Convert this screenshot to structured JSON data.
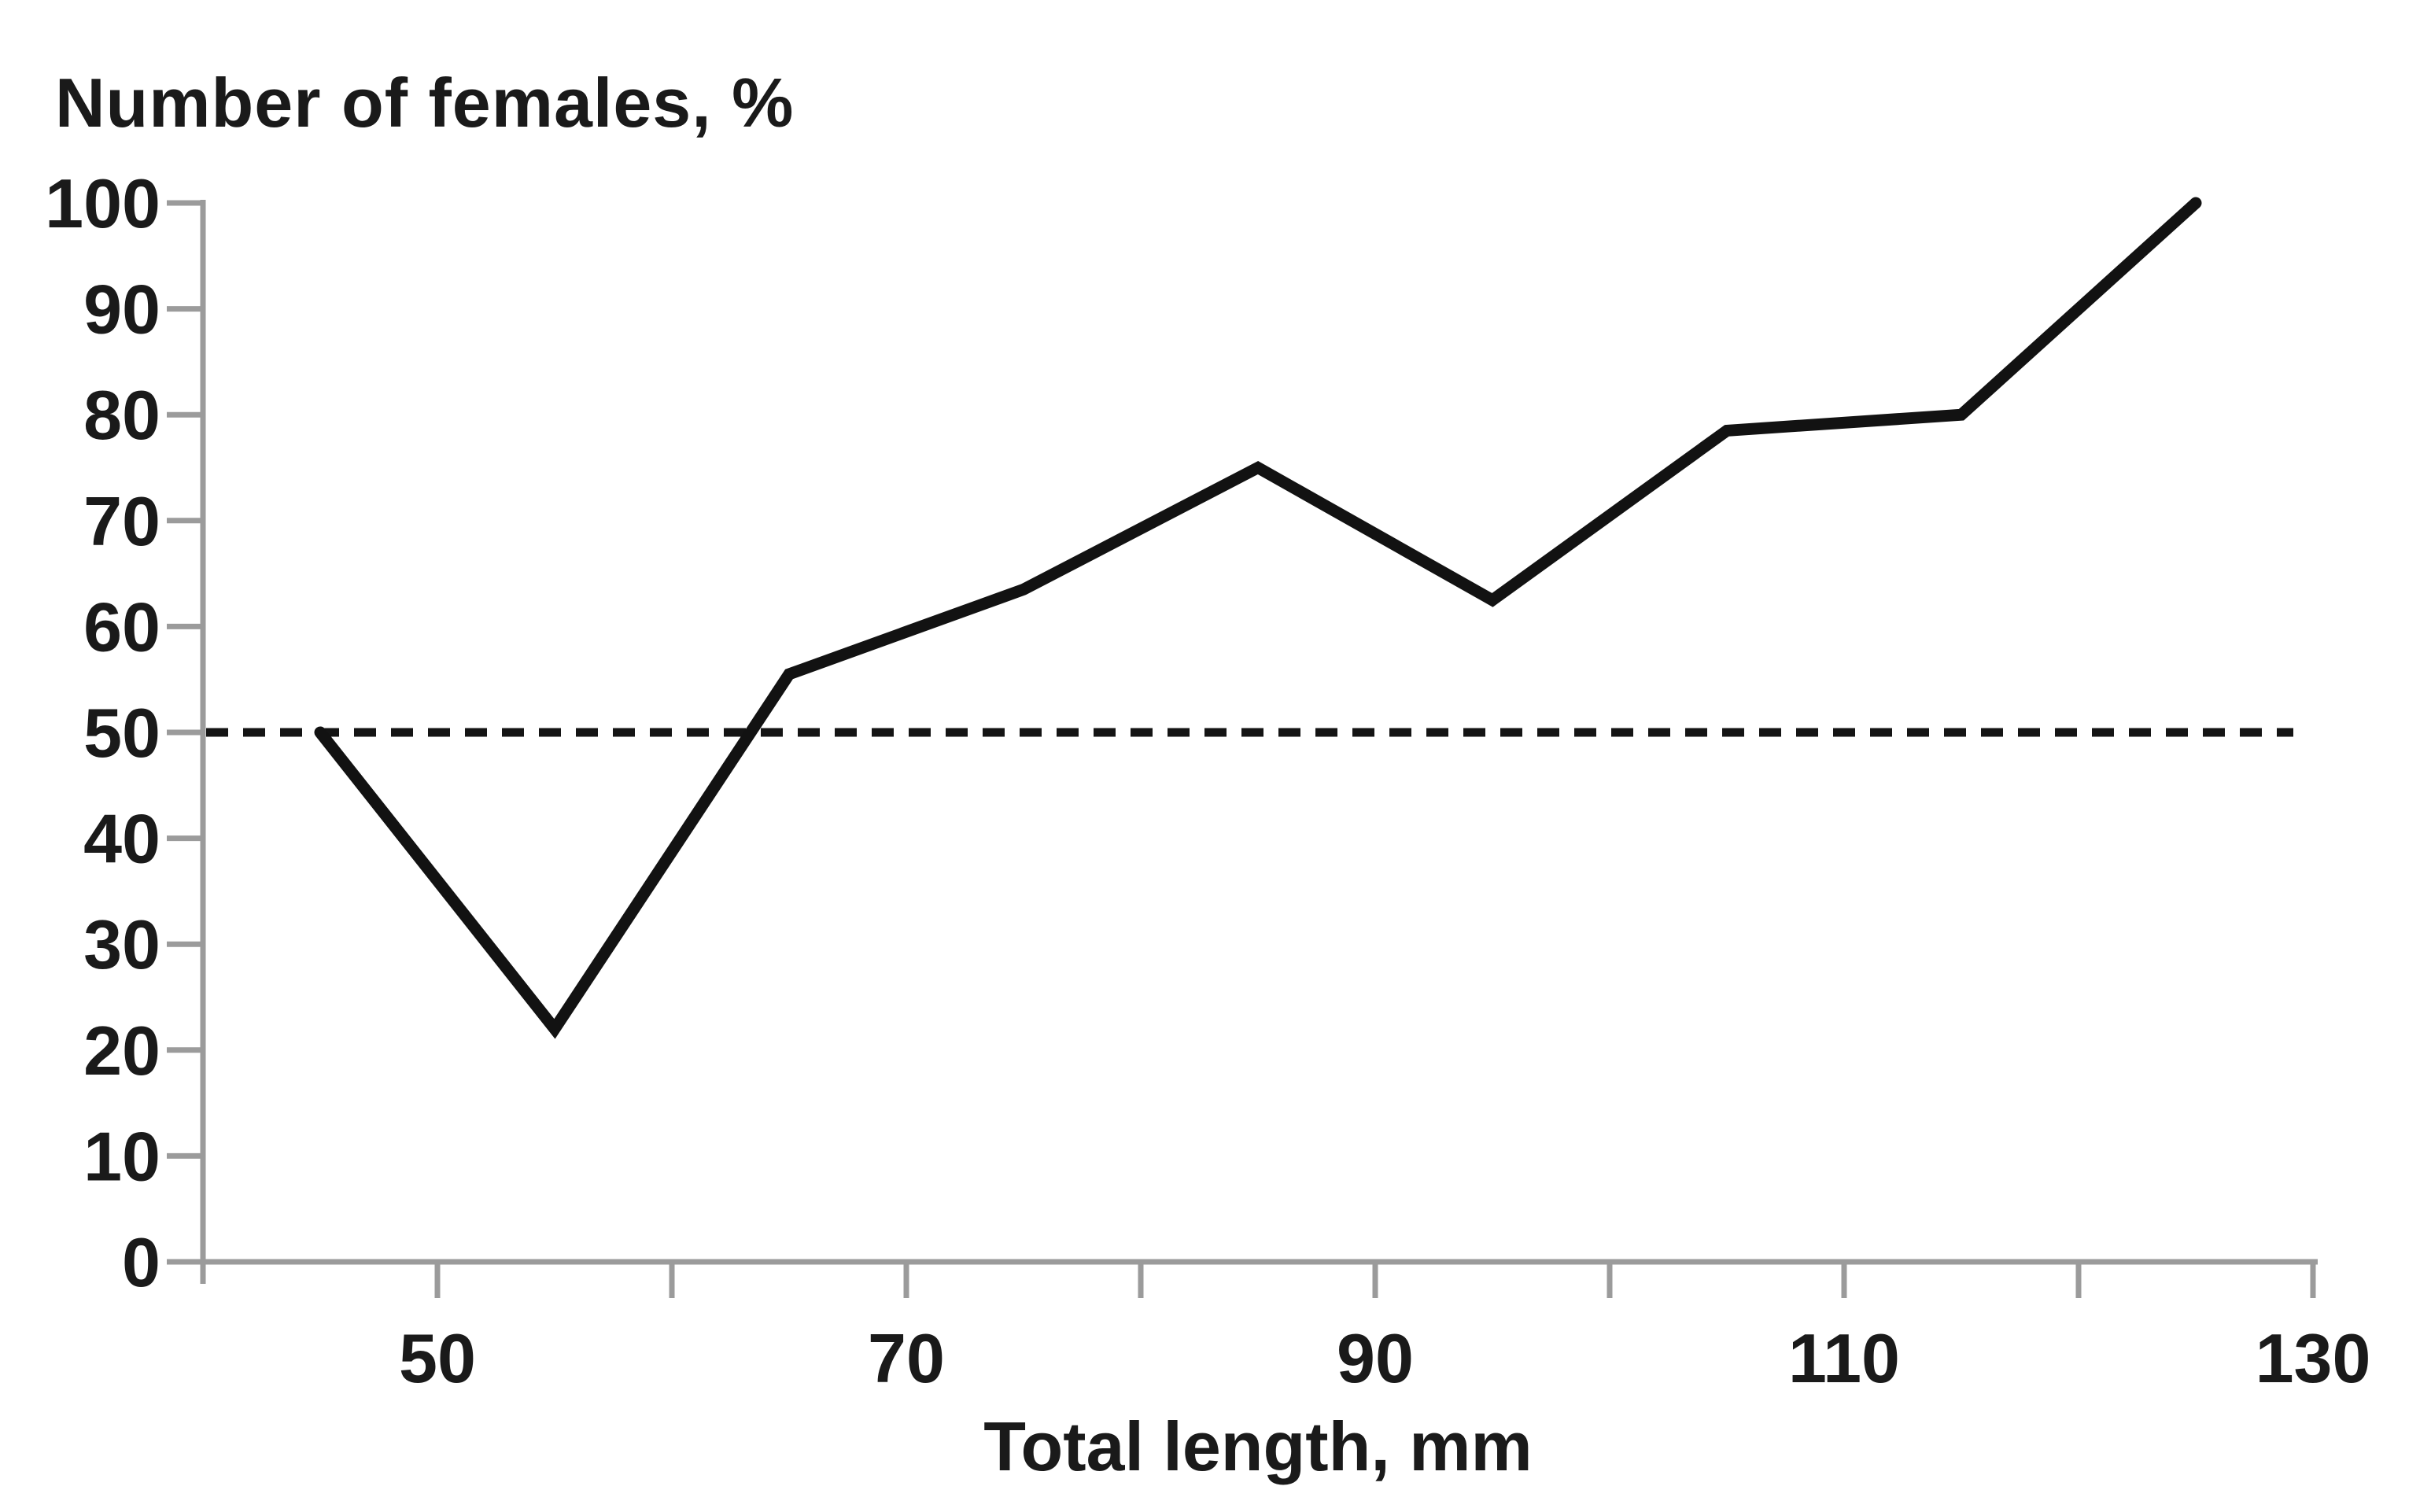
{
  "chart_data": {
    "type": "line",
    "title": "",
    "ylabel": "Number of females, %",
    "xlabel": "Total length, mm",
    "x": [
      45,
      55,
      65,
      75,
      85,
      95,
      105,
      115,
      125
    ],
    "series": [
      {
        "values": [
          50,
          22,
          55.5,
          63.5,
          75,
          62.5,
          78.5,
          80,
          100
        ]
      }
    ],
    "reference_lines": [
      {
        "y": 50,
        "style": "dashed"
      }
    ],
    "xlim": [
      40,
      130
    ],
    "ylim": [
      0,
      100
    ],
    "x_ticks": [
      50,
      60,
      70,
      80,
      90,
      100,
      110,
      120,
      130
    ],
    "x_tick_labels_shown": [
      50,
      70,
      90,
      110,
      130
    ],
    "y_ticks": [
      0,
      10,
      20,
      30,
      40,
      50,
      60,
      70,
      80,
      90,
      100
    ],
    "grid": false,
    "legend": false,
    "colors": {
      "line": "#121212",
      "reference_line": "#141414",
      "axis": "#9b9b9b",
      "text": "#1a1a1a",
      "background": "#ffffff"
    }
  }
}
